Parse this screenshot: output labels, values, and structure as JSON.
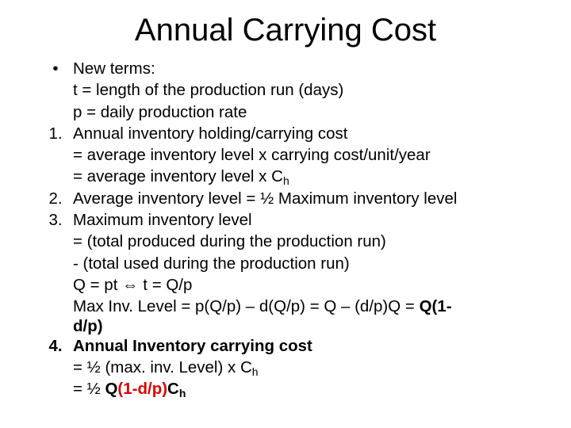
{
  "title": "Annual Carrying Cost",
  "lines": {
    "l1_marker": "•",
    "l1": "New terms:",
    "l2": "t = length of the production run (days)",
    "l3": "p = daily production rate",
    "l4_marker": "1.",
    "l4": "Annual inventory holding/carrying cost",
    "l5": "= average inventory level x carrying cost/unit/year",
    "l6_pre": "= average inventory level x C",
    "l6_sub": "h",
    "l7_marker": "2.",
    "l7": "Average inventory level = ½ Maximum inventory level",
    "l8_marker": "3.",
    "l8": "Maximum inventory level",
    "l9": "= (total produced during the production run)",
    "l10": "-  (total used during the production run)",
    "l11_a": "Q = pt ",
    "l11_arrow": "⇔",
    "l11_b": " t = Q/p",
    "l12_a": "Max Inv. Level = p(Q/p) – d(Q/p) = Q – (d/p)Q = ",
    "l12_bold": "Q(1-",
    "l13_bold": "d/p)",
    "l14_marker": "4.",
    "l14": "Annual Inventory carrying cost",
    "l15_pre": "= ½ (max. inv. Level) x C",
    "l15_sub": "h",
    "l16_a": "= ½ ",
    "l16_q": "Q",
    "l16_red": "(1-d/p)",
    "l16_c": "C",
    "l16_sub": "h"
  }
}
